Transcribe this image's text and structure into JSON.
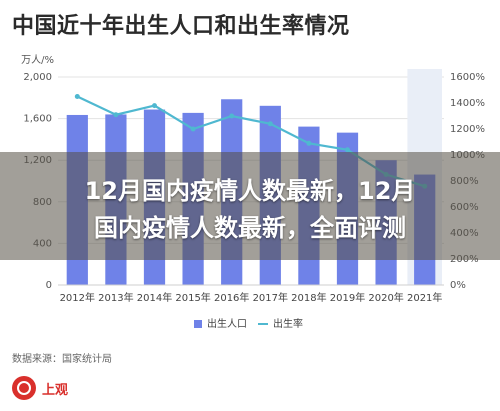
{
  "header": {
    "title": "中国近十年出生人口和出生率情况"
  },
  "overlay": {
    "line1": "12月国内疫情人数最新，12月",
    "line2": "国内疫情人数最新，全面评测"
  },
  "source": "数据来源：国家统计局",
  "publisher": {
    "name": "上观",
    "color": "#d9302c"
  },
  "colors": {
    "bars": "#6f82e8",
    "line": "#4fb8d0",
    "highlight": "#e9eef7"
  },
  "chart_data": {
    "type": "bar",
    "title": "中国近十年出生人口和出生率情况",
    "left_unit": "万人/%",
    "categories": [
      "2012年",
      "2013年",
      "2014年",
      "2015年",
      "2016年",
      "2017年",
      "2018年",
      "2019年",
      "2020年",
      "2021年"
    ],
    "series": [
      {
        "name": "出生人口",
        "type": "bar",
        "axis": "left",
        "values": [
          1635,
          1640,
          1687,
          1655,
          1786,
          1723,
          1523,
          1465,
          1200,
          1062
        ]
      },
      {
        "name": "出生率",
        "type": "line",
        "axis": "right",
        "values": [
          1450,
          1310,
          1380,
          1200,
          1300,
          1240,
          1090,
          1040,
          850,
          760
        ]
      }
    ],
    "ylim_left": [
      0,
      2000
    ],
    "yticks_left": [
      "0",
      "400",
      "800",
      "1,200",
      "1,600",
      "2,000"
    ],
    "ylim_right": [
      0,
      1600
    ],
    "yticks_right": [
      "0%",
      "200%",
      "400%",
      "600%",
      "800%",
      "1000%",
      "1200%",
      "1400%",
      "1600%"
    ],
    "legend_position": "bottom",
    "grid": true,
    "highlighted_category": "2021年"
  }
}
